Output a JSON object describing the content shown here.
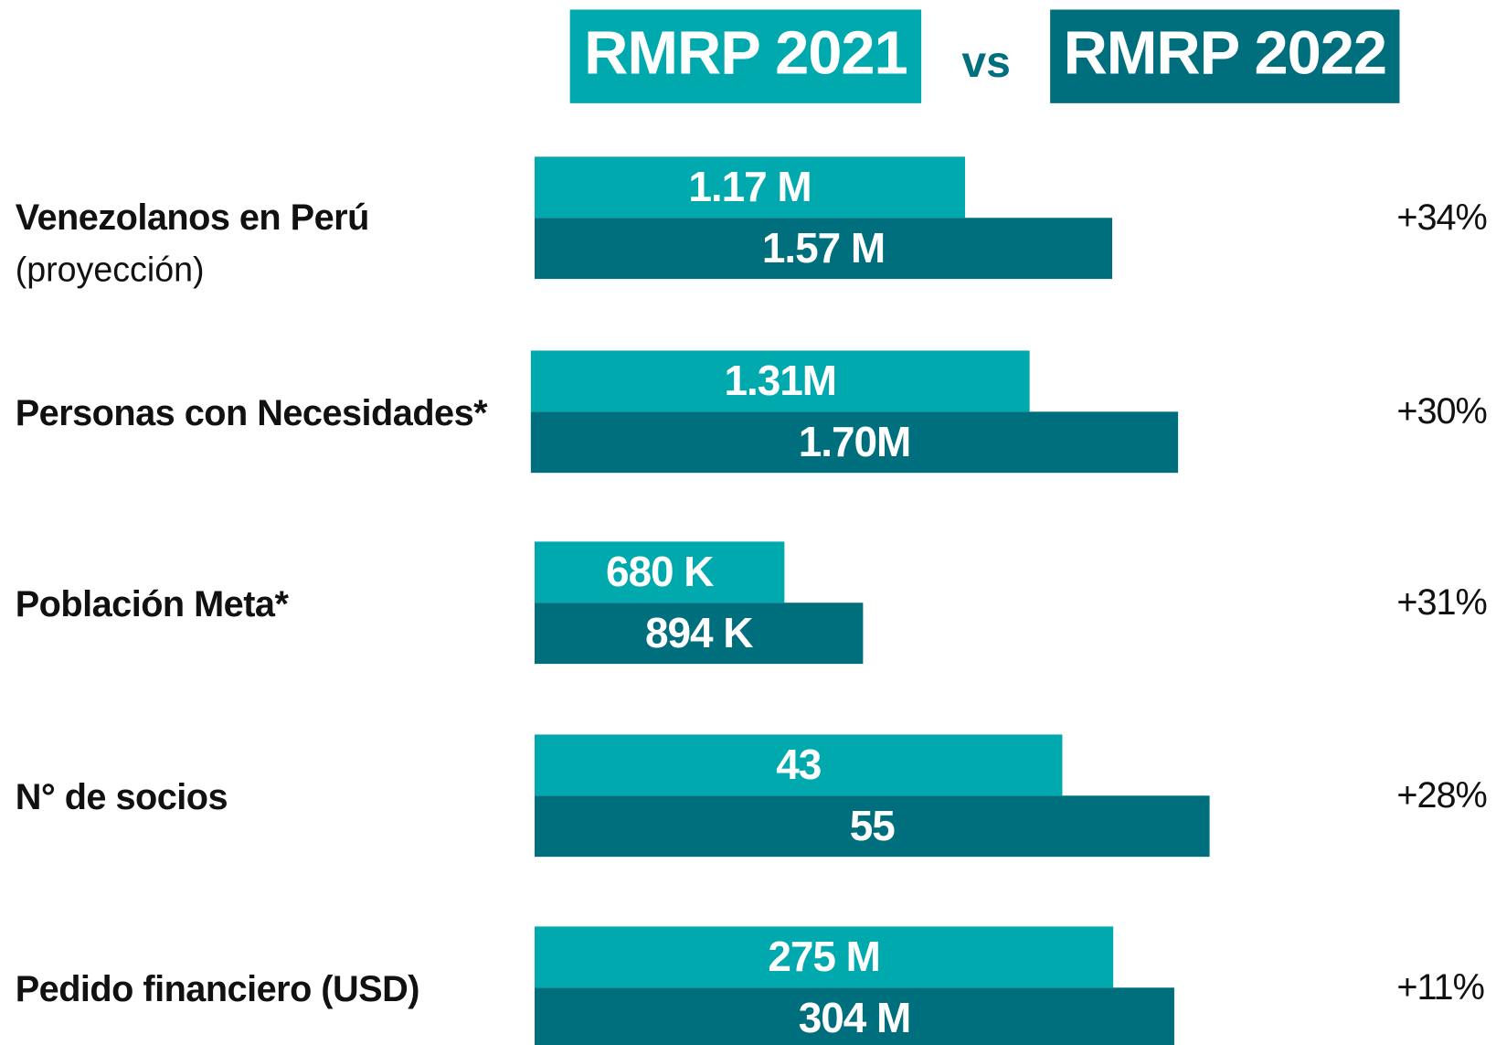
{
  "chart_data": {
    "type": "bar",
    "connector": "vs",
    "categories": [
      "Venezolanos en Perú",
      "Personas con Necesidades*",
      "Población Meta*",
      "N° de socios",
      "Pedido financiero (USD)"
    ],
    "category_notes": [
      "(proyección)",
      null,
      null,
      null,
      null
    ],
    "series": [
      {
        "name": "RMRP 2021",
        "color": "#00a9ad",
        "values": [
          1170000,
          1310000,
          680000,
          43,
          275000000
        ],
        "value_labels": [
          "1.17 M",
          "1.31M",
          "680 K",
          "43",
          "275 M"
        ]
      },
      {
        "name": "RMRP 2022",
        "color": "#006f7d",
        "values": [
          1570000,
          1700000,
          894000,
          55,
          304000000
        ],
        "value_labels": [
          "1.57 M",
          "1.70M",
          "894 K",
          "55",
          "304 M"
        ]
      }
    ],
    "changes": [
      34,
      30,
      31,
      28,
      11
    ],
    "change_labels": [
      "+34%",
      "+30%",
      "+31%",
      "+28%",
      "+11%"
    ]
  }
}
